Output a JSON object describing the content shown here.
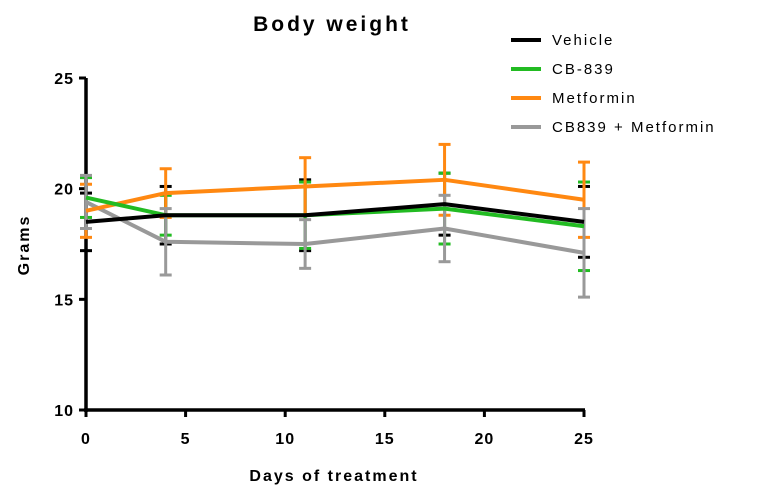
{
  "chart_data": {
    "type": "line",
    "title": "Body weight",
    "xlabel": "Days of treatment",
    "ylabel": "Grams",
    "xlim": [
      0,
      25
    ],
    "ylim": [
      10,
      25
    ],
    "xticks": [
      0,
      5,
      10,
      15,
      20,
      25
    ],
    "yticks": [
      10,
      15,
      20,
      25
    ],
    "x_tick_labels": [
      "0",
      "5",
      "10",
      "15",
      "20",
      "25"
    ],
    "y_tick_labels": [
      "10",
      "15",
      "20",
      "25"
    ],
    "grid": false,
    "legend_position": "top-right",
    "x": [
      0,
      4,
      11,
      18,
      25
    ],
    "series": [
      {
        "name": "Vehicle",
        "color": "#000000",
        "values": [
          18.5,
          18.8,
          18.8,
          19.3,
          18.5
        ],
        "error": [
          1.3,
          1.3,
          1.6,
          1.4,
          1.6
        ]
      },
      {
        "name": "CB-839",
        "color": "#22bb22",
        "values": [
          19.6,
          18.8,
          18.8,
          19.1,
          18.3
        ],
        "error": [
          0.9,
          0.9,
          1.5,
          1.6,
          2.0
        ]
      },
      {
        "name": "Metformin",
        "color": "#ff8811",
        "values": [
          19.0,
          19.8,
          20.1,
          20.4,
          19.5
        ],
        "error": [
          1.2,
          1.1,
          1.3,
          1.6,
          1.7
        ]
      },
      {
        "name": "CB839 + Metformin",
        "color": "#999999",
        "values": [
          19.4,
          17.6,
          17.5,
          18.2,
          17.1
        ],
        "error": [
          1.2,
          1.5,
          1.1,
          1.5,
          2.0
        ]
      }
    ]
  }
}
